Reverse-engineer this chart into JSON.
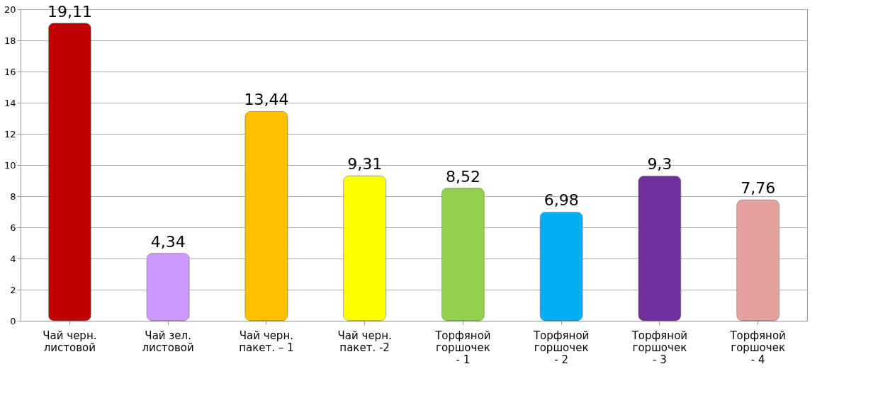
{
  "chart_data": {
    "type": "bar",
    "categories": [
      "Чай черн.\nлистовой",
      "Чай зел.\nлистовой",
      "Чай черн.\nпакет. – 1",
      "Чай черн.\nпакет. -2",
      "Торфяной\nгоршочек\n- 1",
      "Торфяной\nгоршочек\n- 2",
      "Торфяной\nгоршочек\n- 3",
      "Торфяной\nгоршочек\n- 4"
    ],
    "values": [
      19.11,
      4.34,
      13.44,
      9.31,
      8.52,
      6.98,
      9.3,
      7.76
    ],
    "value_labels": [
      "19,11",
      "4,34",
      "13,44",
      "9,31",
      "8,52",
      "6,98",
      "9,3",
      "7,76"
    ],
    "colors": [
      "#c00000",
      "#cc99ff",
      "#ffc000",
      "#ffff00",
      "#92d050",
      "#00b0f0",
      "#7030a0",
      "#e6a0a0"
    ],
    "ylim": [
      0,
      20
    ],
    "yticks": [
      0,
      2,
      4,
      6,
      8,
      10,
      12,
      14,
      16,
      18,
      20
    ],
    "grid": "y",
    "legend": false
  }
}
